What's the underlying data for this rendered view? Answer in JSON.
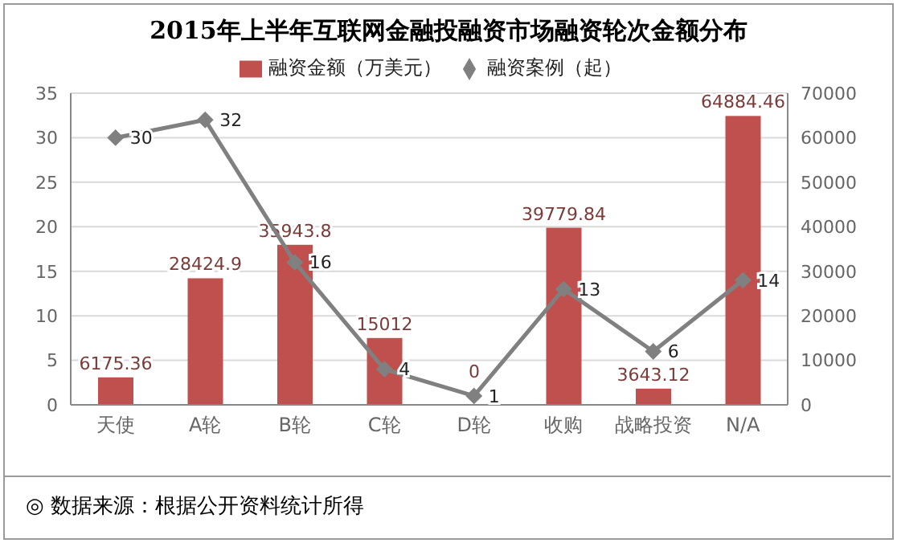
{
  "chart_data": {
    "type": "bar",
    "title": "2015年上半年互联网金融投融资市场融资轮次金额分布",
    "categories": [
      "天使",
      "A轮",
      "B轮",
      "C轮",
      "D轮",
      "收购",
      "战略投资",
      "N/A"
    ],
    "series": [
      {
        "name": "融资金额（万美元）",
        "axis": "y2",
        "color": "#c0504d",
        "values": [
          6175.36,
          28424.9,
          35943.8,
          15012,
          0,
          39779.84,
          3643.12,
          64884.46
        ]
      },
      {
        "name": "融资案例（起）",
        "type": "line",
        "axis": "y",
        "color": "#808080",
        "marker": "diamond",
        "line_style": "solid",
        "values": [
          30,
          32,
          16,
          4,
          1,
          13,
          6,
          14
        ]
      }
    ],
    "ylim": [
      0,
      35
    ],
    "yticks": [
      0,
      5,
      10,
      15,
      20,
      25,
      30,
      35
    ],
    "y2lim": [
      0,
      70000
    ],
    "y2ticks": [
      0,
      10000,
      20000,
      30000,
      40000,
      50000,
      60000,
      70000
    ],
    "grid": "y",
    "legend": "top",
    "data_labels": true,
    "annotations": [
      "◎ 数据来源：根据公开资料统计所得"
    ]
  }
}
